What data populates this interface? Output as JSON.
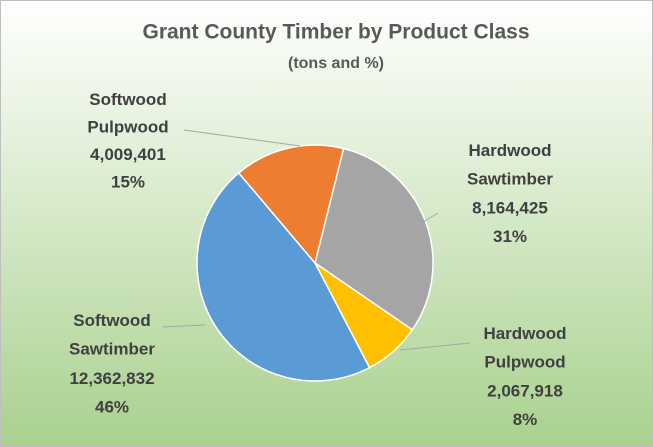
{
  "chart_data": {
    "type": "pie",
    "title": "Grant County Timber by Product Class",
    "subtitle": "(tons and %)",
    "categories": [
      "Hardwood Sawtimber",
      "Hardwood Pulpwood",
      "Softwood Sawtimber",
      "Softwood Pulpwood"
    ],
    "values": [
      8164425,
      2067918,
      12362832,
      4009401
    ],
    "value_labels": [
      "8,164,425",
      "2,067,918",
      "12,362,832",
      "4,009,401"
    ],
    "percent_labels": [
      "31%",
      "8%",
      "46%",
      "15%"
    ],
    "colors": [
      "#a5a5a5",
      "#ffc000",
      "#5b9bd5",
      "#ed7d31"
    ]
  }
}
